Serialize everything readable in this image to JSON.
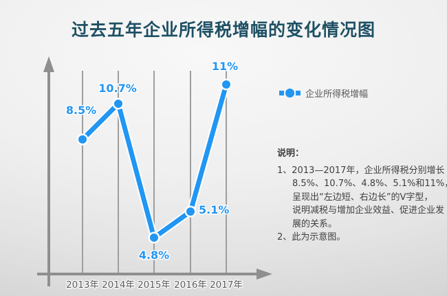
{
  "page": {
    "title": "过去五年企业所得税增幅的变化情况图"
  },
  "legend": {
    "label": "企业所得税增幅"
  },
  "notes": {
    "heading": "说明：",
    "lines": [
      "1、2013—2017年，企业所得税分别增长",
      "8.5%、10.7%、4.8%、5.1%和11%，",
      "呈现出“左边短、右边长”的V字型，",
      "说明减税与增加企业效益、促进企业发",
      "展的关系。",
      "2、此为示意图。"
    ]
  },
  "colors": {
    "accent_blue": "#2196f3",
    "title_teal": "#1e5064",
    "axis_gray": "#8f8f8f",
    "grid_gray": "#9e9e9e",
    "category_text": "#595959",
    "note_text": "#3f3f3f"
  },
  "chart_data": {
    "type": "line",
    "title": "过去五年企业所得税增幅的变化情况图",
    "categories": [
      "2013年",
      "2014年",
      "2015年",
      "2016年",
      "2017年"
    ],
    "series": [
      {
        "name": "企业所得税增幅",
        "values": [
          8.5,
          10.7,
          4.8,
          5.1,
          11
        ]
      }
    ],
    "point_labels": [
      "8.5%",
      "10.7%",
      "4.8%",
      "5.1%",
      "11%"
    ],
    "xlabel": "",
    "ylabel": "",
    "ylim": [
      0,
      12
    ],
    "grid": "vertical-gridlines-only",
    "legend_position": "right",
    "marker": "circle"
  }
}
